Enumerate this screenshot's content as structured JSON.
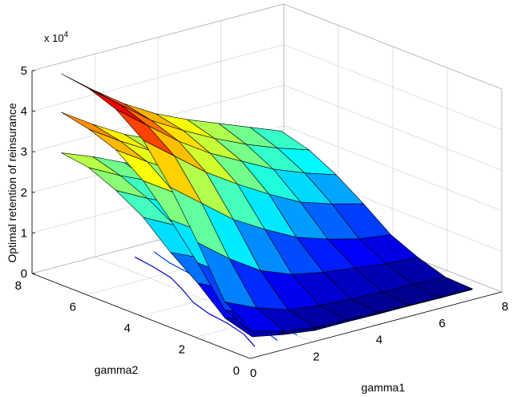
{
  "chart_data": {
    "type": "surface3d",
    "zlabel": "Optimal retention of reinsurance",
    "xlabel": "gamma1",
    "ylabel": "gamma2",
    "zscale_label_base": "x 10",
    "zscale_label_exp": "4",
    "xlim": [
      0,
      8
    ],
    "ylim": [
      0,
      8
    ],
    "zlim": [
      0,
      5
    ],
    "xticks": [
      "0",
      "2",
      "4",
      "6",
      "8"
    ],
    "yticks": [
      "0",
      "2",
      "4",
      "6",
      "8"
    ],
    "zticks": [
      "0",
      "1",
      "2",
      "3",
      "4",
      "5"
    ],
    "grid": true,
    "gamma1": [
      0.5,
      1.5,
      2.5,
      3.5,
      4.5,
      5.5,
      6.5,
      7.5
    ],
    "gamma2": [
      0.5,
      1.5,
      2.5,
      3.5,
      4.5,
      5.5,
      6.5,
      7.5
    ],
    "series": [
      {
        "values": [
          [
            0.3,
            0.15,
            0.05,
            0.05,
            0.04,
            0.04,
            0.03,
            0.03
          ],
          [
            0.5,
            0.25,
            0.15,
            0.1,
            0.08,
            0.06,
            0.05,
            0.04
          ],
          [
            1.1,
            0.75,
            0.45,
            0.3,
            0.25,
            0.2,
            0.15,
            0.1
          ],
          [
            1.6,
            1.25,
            0.95,
            0.7,
            0.5,
            0.4,
            0.3,
            0.25
          ],
          [
            2.2,
            1.8,
            1.45,
            1.15,
            0.9,
            0.7,
            0.6,
            0.5
          ],
          [
            2.6,
            2.2,
            1.85,
            1.55,
            1.3,
            1.05,
            0.9,
            0.75
          ],
          [
            2.9,
            2.5,
            2.15,
            1.85,
            1.6,
            1.35,
            1.15,
            1.0
          ],
          [
            3.0,
            2.7,
            2.35,
            2.05,
            1.8,
            1.55,
            1.35,
            1.2
          ]
        ]
      },
      {
        "values": [
          [
            0.4,
            0.2,
            0.1,
            0.08,
            0.06,
            0.05,
            0.05,
            0.04
          ],
          [
            0.7,
            0.4,
            0.2,
            0.15,
            0.12,
            0.1,
            0.08,
            0.06
          ],
          [
            1.6,
            1.1,
            0.7,
            0.5,
            0.4,
            0.3,
            0.25,
            0.2
          ],
          [
            2.4,
            1.9,
            1.45,
            1.1,
            0.8,
            0.65,
            0.5,
            0.4
          ],
          [
            3.1,
            2.6,
            2.15,
            1.75,
            1.4,
            1.1,
            0.95,
            0.8
          ],
          [
            3.6,
            3.1,
            2.65,
            2.25,
            1.9,
            1.6,
            1.35,
            1.15
          ],
          [
            3.85,
            3.35,
            2.9,
            2.5,
            2.2,
            1.9,
            1.65,
            1.45
          ],
          [
            4.0,
            3.5,
            3.05,
            2.7,
            2.4,
            2.1,
            1.85,
            1.65
          ]
        ]
      },
      {
        "values": [
          [
            0.45,
            0.25,
            0.12,
            0.1,
            0.08,
            0.06,
            0.05,
            0.05
          ],
          [
            0.9,
            0.55,
            0.3,
            0.2,
            0.15,
            0.12,
            0.1,
            0.08
          ],
          [
            2.1,
            1.5,
            1.0,
            0.7,
            0.55,
            0.45,
            0.35,
            0.3
          ],
          [
            3.2,
            2.6,
            2.0,
            1.55,
            1.15,
            0.9,
            0.7,
            0.6
          ],
          [
            4.1,
            3.5,
            2.9,
            2.4,
            1.95,
            1.55,
            1.3,
            1.1
          ],
          [
            4.6,
            4.0,
            3.4,
            2.9,
            2.5,
            2.1,
            1.8,
            1.55
          ],
          [
            4.85,
            4.25,
            3.65,
            3.2,
            2.8,
            2.45,
            2.15,
            1.9
          ],
          [
            4.95,
            4.35,
            3.8,
            3.35,
            3.0,
            2.7,
            2.4,
            2.1
          ]
        ]
      }
    ]
  }
}
